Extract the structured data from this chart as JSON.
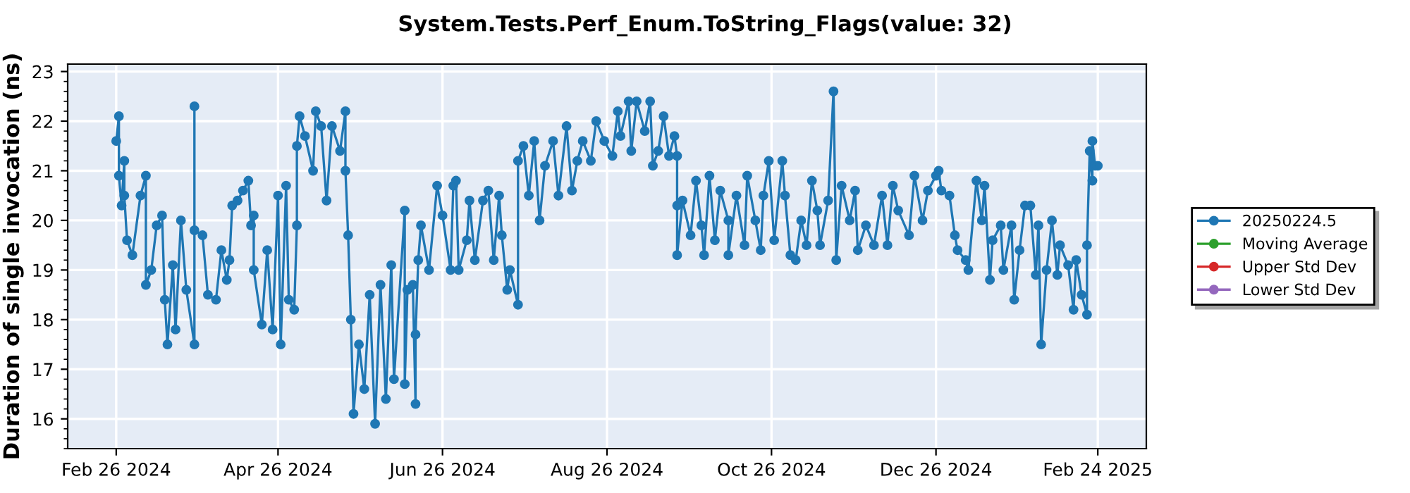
{
  "chart_data": {
    "type": "line",
    "title": "System.Tests.Perf_Enum.ToString_Flags(value: 32)",
    "ylabel": "Duration of single invocation (ns)",
    "x": [
      "2024-02-26",
      "2024-02-27",
      "2024-02-27",
      "2024-02-28",
      "2024-02-29",
      "2024-02-29",
      "2024-03-01",
      "2024-03-03",
      "2024-03-06",
      "2024-03-08",
      "2024-03-08",
      "2024-03-10",
      "2024-03-12",
      "2024-03-14",
      "2024-03-15",
      "2024-03-16",
      "2024-03-18",
      "2024-03-19",
      "2024-03-21",
      "2024-03-23",
      "2024-03-26",
      "2024-03-26",
      "2024-03-26",
      "2024-03-29",
      "2024-03-31",
      "2024-04-03",
      "2024-04-05",
      "2024-04-07",
      "2024-04-08",
      "2024-04-09",
      "2024-04-11",
      "2024-04-13",
      "2024-04-15",
      "2024-04-16",
      "2024-04-17",
      "2024-04-17",
      "2024-04-20",
      "2024-04-22",
      "2024-04-24",
      "2024-04-26",
      "2024-04-27",
      "2024-04-29",
      "2024-04-30",
      "2024-05-02",
      "2024-05-03",
      "2024-05-03",
      "2024-05-04",
      "2024-05-06",
      "2024-05-09",
      "2024-05-10",
      "2024-05-12",
      "2024-05-14",
      "2024-05-16",
      "2024-05-19",
      "2024-05-21",
      "2024-05-21",
      "2024-05-22",
      "2024-05-23",
      "2024-05-24",
      "2024-05-26",
      "2024-05-28",
      "2024-05-30",
      "2024-06-01",
      "2024-06-03",
      "2024-06-05",
      "2024-06-07",
      "2024-06-08",
      "2024-06-12",
      "2024-06-12",
      "2024-06-13",
      "2024-06-15",
      "2024-06-16",
      "2024-06-16",
      "2024-06-17",
      "2024-06-18",
      "2024-06-21",
      "2024-06-24",
      "2024-06-26",
      "2024-06-29",
      "2024-06-30",
      "2024-07-01",
      "2024-07-02",
      "2024-07-05",
      "2024-07-06",
      "2024-07-08",
      "2024-07-11",
      "2024-07-13",
      "2024-07-15",
      "2024-07-17",
      "2024-07-18",
      "2024-07-20",
      "2024-07-21",
      "2024-07-24",
      "2024-07-24",
      "2024-07-26",
      "2024-07-28",
      "2024-07-30",
      "2024-08-01",
      "2024-08-03",
      "2024-08-06",
      "2024-08-08",
      "2024-08-11",
      "2024-08-13",
      "2024-08-15",
      "2024-08-17",
      "2024-08-20",
      "2024-08-22",
      "2024-08-25",
      "2024-08-28",
      "2024-08-30",
      "2024-08-31",
      "2024-09-03",
      "2024-09-04",
      "2024-09-06",
      "2024-09-09",
      "2024-09-11",
      "2024-09-12",
      "2024-09-14",
      "2024-09-16",
      "2024-09-18",
      "2024-09-20",
      "2024-09-21",
      "2024-09-21",
      "2024-09-21",
      "2024-09-23",
      "2024-09-26",
      "2024-09-28",
      "2024-09-30",
      "2024-10-01",
      "2024-10-03",
      "2024-10-05",
      "2024-10-07",
      "2024-10-10",
      "2024-10-10",
      "2024-10-13",
      "2024-10-16",
      "2024-10-17",
      "2024-10-20",
      "2024-10-22",
      "2024-10-23",
      "2024-10-25",
      "2024-10-27",
      "2024-10-30",
      "2024-10-31",
      "2024-11-02",
      "2024-11-04",
      "2024-11-06",
      "2024-11-08",
      "2024-11-10",
      "2024-11-12",
      "2024-11-13",
      "2024-11-16",
      "2024-11-18",
      "2024-11-19",
      "2024-11-21",
      "2024-11-24",
      "2024-11-26",
      "2024-11-27",
      "2024-11-30",
      "2024-12-03",
      "2024-12-06",
      "2024-12-08",
      "2024-12-10",
      "2024-12-12",
      "2024-12-16",
      "2024-12-18",
      "2024-12-21",
      "2024-12-23",
      "2024-12-26",
      "2024-12-27",
      "2024-12-28",
      "2024-12-31",
      "2025-01-02",
      "2025-01-03",
      "2025-01-06",
      "2025-01-07",
      "2025-01-10",
      "2025-01-12",
      "2025-01-13",
      "2025-01-15",
      "2025-01-16",
      "2025-01-19",
      "2025-01-20",
      "2025-01-23",
      "2025-01-24",
      "2025-01-26",
      "2025-01-28",
      "2025-01-30",
      "2025-02-01",
      "2025-02-02",
      "2025-02-03",
      "2025-02-05",
      "2025-02-07",
      "2025-02-09",
      "2025-02-10",
      "2025-02-13",
      "2025-02-15",
      "2025-02-16",
      "2025-02-18",
      "2025-02-20",
      "2025-02-20",
      "2025-02-21",
      "2025-02-22",
      "2025-02-22",
      "2025-02-23",
      "2025-02-24"
    ],
    "series": [
      {
        "name": "20250224.5",
        "color": "#1f77b4",
        "values": [
          21.6,
          22.1,
          20.9,
          20.3,
          21.2,
          20.5,
          19.6,
          19.3,
          20.5,
          20.9,
          18.7,
          19.0,
          19.9,
          20.1,
          18.4,
          17.5,
          19.1,
          17.8,
          20.0,
          18.6,
          17.5,
          22.3,
          19.8,
          19.7,
          18.5,
          18.4,
          19.4,
          18.8,
          19.2,
          20.3,
          20.4,
          20.6,
          20.8,
          19.9,
          20.1,
          19.0,
          17.9,
          19.4,
          17.8,
          20.5,
          17.5,
          20.7,
          18.4,
          18.2,
          19.9,
          21.5,
          22.1,
          21.7,
          21.0,
          22.2,
          21.9,
          20.4,
          21.9,
          21.4,
          22.2,
          21.0,
          19.7,
          18.0,
          16.1,
          17.5,
          16.6,
          18.5,
          15.9,
          18.7,
          16.4,
          19.1,
          16.8,
          20.2,
          16.7,
          18.6,
          18.7,
          16.3,
          17.7,
          19.2,
          19.9,
          19.0,
          20.7,
          20.1,
          19.0,
          20.7,
          20.8,
          19.0,
          19.6,
          20.4,
          19.2,
          20.4,
          20.6,
          19.2,
          20.5,
          19.7,
          18.6,
          19.0,
          18.3,
          21.2,
          21.5,
          20.5,
          21.6,
          20.0,
          21.1,
          21.6,
          20.5,
          21.9,
          20.6,
          21.2,
          21.6,
          21.2,
          22.0,
          21.6,
          21.3,
          22.2,
          21.7,
          22.4,
          21.4,
          22.4,
          21.8,
          22.4,
          21.1,
          21.4,
          22.1,
          21.3,
          21.7,
          21.3,
          20.3,
          19.3,
          20.4,
          19.7,
          20.8,
          19.9,
          19.3,
          20.9,
          19.6,
          20.6,
          20.0,
          19.3,
          20.5,
          19.5,
          20.9,
          20.0,
          19.4,
          20.5,
          21.2,
          19.6,
          21.2,
          20.5,
          19.3,
          19.2,
          20.0,
          19.5,
          20.8,
          20.2,
          19.5,
          20.4,
          22.6,
          19.2,
          20.7,
          20.0,
          20.6,
          19.4,
          19.9,
          19.5,
          20.5,
          19.5,
          20.7,
          20.2,
          19.7,
          20.9,
          20.0,
          20.6,
          20.9,
          21.0,
          20.6,
          20.5,
          19.7,
          19.4,
          19.2,
          19.0,
          20.8,
          20.0,
          20.7,
          18.8,
          19.6,
          19.9,
          19.0,
          19.9,
          18.4,
          19.4,
          20.3,
          20.3,
          18.9,
          19.9,
          17.5,
          19.0,
          20.0,
          18.9,
          19.5,
          19.1,
          18.2,
          19.2,
          18.5,
          18.1,
          19.5,
          21.4,
          20.8,
          21.6,
          21.1,
          21.1
        ]
      },
      {
        "name": "Moving Average",
        "color": "#2ca02c",
        "values": [
          null,
          null,
          null,
          null,
          null,
          null,
          null,
          null,
          null,
          null,
          null,
          null,
          null,
          null,
          null,
          null,
          null,
          null,
          null,
          null,
          null,
          null,
          null,
          null,
          null,
          null,
          null,
          null,
          null,
          null,
          null,
          null,
          null,
          null,
          null,
          null,
          null,
          null,
          null,
          null,
          null,
          null,
          null,
          null,
          null,
          null,
          null,
          null,
          null,
          null,
          null,
          null,
          null,
          null,
          null,
          null,
          null,
          null,
          null,
          null,
          null,
          null,
          null,
          null,
          null,
          null,
          null,
          null,
          null,
          null,
          null,
          null,
          null,
          null,
          null,
          null,
          null,
          null,
          null,
          null,
          null,
          null,
          null,
          null,
          null,
          null,
          null,
          null,
          null,
          null,
          null,
          null,
          null,
          null,
          null,
          null,
          null,
          null,
          null,
          null,
          null,
          null,
          null,
          null,
          null,
          null,
          null,
          null,
          null,
          null,
          null,
          null,
          null,
          null,
          null,
          null,
          null,
          null,
          null,
          null,
          null,
          null,
          null,
          null,
          null,
          null,
          null,
          null,
          null,
          null,
          null,
          null,
          null,
          null,
          null,
          null,
          null,
          null,
          null,
          null,
          null,
          null,
          null,
          null,
          null,
          null,
          null,
          null,
          null,
          null,
          null,
          null,
          null,
          null,
          null,
          null,
          null,
          null,
          null,
          null,
          null,
          null,
          null,
          null,
          null,
          null,
          null,
          null,
          null,
          null,
          null,
          null,
          null,
          null,
          null,
          null,
          null,
          null,
          null,
          null,
          null,
          null,
          null,
          null,
          null,
          null,
          null,
          null,
          null,
          null,
          null,
          null,
          null,
          null,
          null,
          null,
          null,
          null,
          null,
          null,
          null,
          null,
          null,
          null,
          null,
          null
        ]
      },
      {
        "name": "Upper Std Dev",
        "color": "#d62728",
        "values": [
          null,
          null,
          null,
          null,
          null,
          null,
          null,
          null,
          null,
          null,
          null,
          null,
          null,
          null,
          null,
          null,
          null,
          null,
          null,
          null,
          null,
          null,
          null,
          null,
          null,
          null,
          null,
          null,
          null,
          null,
          null,
          null,
          null,
          null,
          null,
          null,
          null,
          null,
          null,
          null,
          null,
          null,
          null,
          null,
          null,
          null,
          null,
          null,
          null,
          null,
          null,
          null,
          null,
          null,
          null,
          null,
          null,
          null,
          null,
          null,
          null,
          null,
          null,
          null,
          null,
          null,
          null,
          null,
          null,
          null,
          null,
          null,
          null,
          null,
          null,
          null,
          null,
          null,
          null,
          null,
          null,
          null,
          null,
          null,
          null,
          null,
          null,
          null,
          null,
          null,
          null,
          null,
          null,
          null,
          null,
          null,
          null,
          null,
          null,
          null,
          null,
          null,
          null,
          null,
          null,
          null,
          null,
          null,
          null,
          null,
          null,
          null,
          null,
          null,
          null,
          null,
          null,
          null,
          null,
          null,
          null,
          null,
          null,
          null,
          null,
          null,
          null,
          null,
          null,
          null,
          null,
          null,
          null,
          null,
          null,
          null,
          null,
          null,
          null,
          null,
          null,
          null,
          null,
          null,
          null,
          null,
          null,
          null,
          null,
          null,
          null,
          null,
          null,
          null,
          null,
          null,
          null,
          null,
          null,
          null,
          null,
          null,
          null,
          null,
          null,
          null,
          null,
          null,
          null,
          null,
          null,
          null,
          null,
          null,
          null,
          null,
          null,
          null,
          null,
          null,
          null,
          null,
          null,
          null,
          null,
          null,
          null,
          null,
          null,
          null,
          null,
          null,
          null,
          null,
          null,
          null,
          null,
          null,
          null,
          null,
          null,
          null,
          null,
          null,
          null,
          null
        ]
      },
      {
        "name": "Lower Std Dev",
        "color": "#9467bd",
        "values": [
          null,
          null,
          null,
          null,
          null,
          null,
          null,
          null,
          null,
          null,
          null,
          null,
          null,
          null,
          null,
          null,
          null,
          null,
          null,
          null,
          null,
          null,
          null,
          null,
          null,
          null,
          null,
          null,
          null,
          null,
          null,
          null,
          null,
          null,
          null,
          null,
          null,
          null,
          null,
          null,
          null,
          null,
          null,
          null,
          null,
          null,
          null,
          null,
          null,
          null,
          null,
          null,
          null,
          null,
          null,
          null,
          null,
          null,
          null,
          null,
          null,
          null,
          null,
          null,
          null,
          null,
          null,
          null,
          null,
          null,
          null,
          null,
          null,
          null,
          null,
          null,
          null,
          null,
          null,
          null,
          null,
          null,
          null,
          null,
          null,
          null,
          null,
          null,
          null,
          null,
          null,
          null,
          null,
          null,
          null,
          null,
          null,
          null,
          null,
          null,
          null,
          null,
          null,
          null,
          null,
          null,
          null,
          null,
          null,
          null,
          null,
          null,
          null,
          null,
          null,
          null,
          null,
          null,
          null,
          null,
          null,
          null,
          null,
          null,
          null,
          null,
          null,
          null,
          null,
          null,
          null,
          null,
          null,
          null,
          null,
          null,
          null,
          null,
          null,
          null,
          null,
          null,
          null,
          null,
          null,
          null,
          null,
          null,
          null,
          null,
          null,
          null,
          null,
          null,
          null,
          null,
          null,
          null,
          null,
          null,
          null,
          null,
          null,
          null,
          null,
          null,
          null,
          null,
          null,
          null,
          null,
          null,
          null,
          null,
          null,
          null,
          null,
          null,
          null,
          null,
          null,
          null,
          null,
          null,
          null,
          null,
          null,
          null,
          null,
          null,
          null,
          null,
          null,
          null,
          null,
          null,
          null,
          null,
          null,
          null,
          null,
          null,
          null,
          null,
          null,
          null
        ]
      }
    ],
    "xlim": [
      "2024-02-08",
      "2025-03-14"
    ],
    "xticks": [
      {
        "value": "2024-02-26",
        "label": "Feb 26 2024"
      },
      {
        "value": "2024-04-26",
        "label": "Apr 26 2024"
      },
      {
        "value": "2024-06-26",
        "label": "Jun 26 2024"
      },
      {
        "value": "2024-08-26",
        "label": "Aug 26 2024"
      },
      {
        "value": "2024-10-26",
        "label": "Oct 26 2024"
      },
      {
        "value": "2024-12-26",
        "label": "Dec 26 2024"
      },
      {
        "value": "2025-02-24",
        "label": "Feb 24 2025"
      }
    ],
    "ylim": [
      15.4,
      23.15
    ],
    "yticks": [
      16,
      17,
      18,
      19,
      20,
      21,
      22,
      23
    ],
    "grid": true,
    "legend": "right",
    "marker": "circle",
    "line_style": "solid"
  }
}
